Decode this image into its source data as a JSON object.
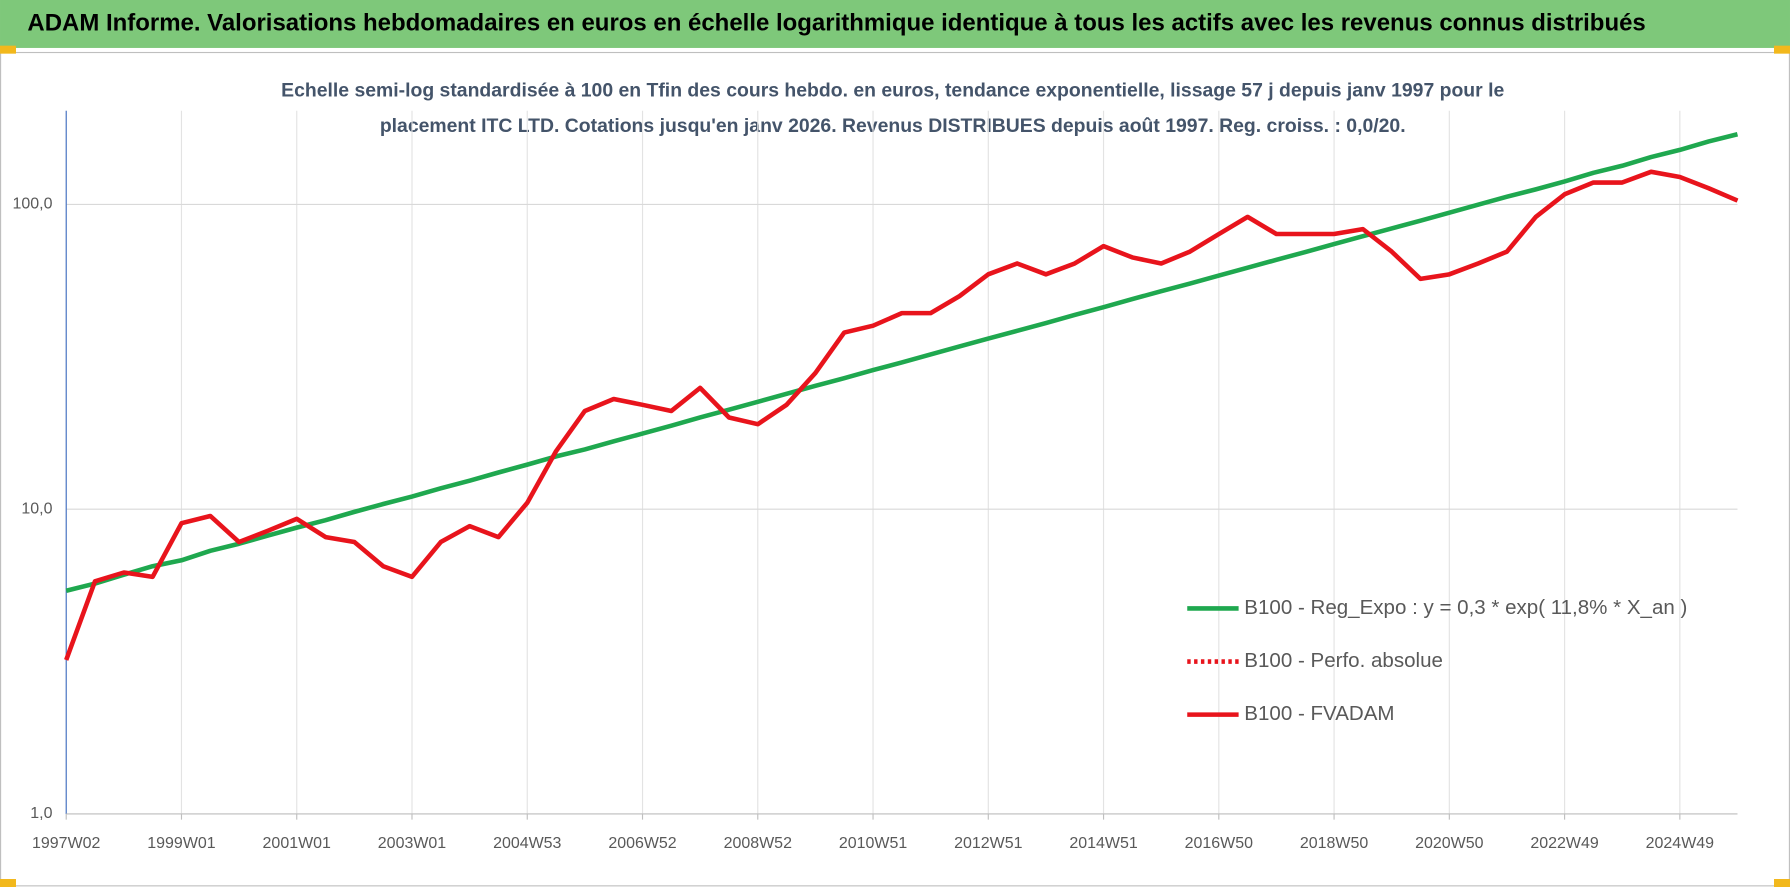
{
  "chart_data": {
    "type": "line",
    "title": "ADAM Informe. Valorisations hebdomadaires en euros en échelle logarithmique identique à tous les actifs avec les revenus connus distribués",
    "subtitle": [
      "Echelle semi-log standardisée à 100 en Tfin des cours hebdo. en euros, tendance exponentielle, lissage 57 j depuis janv 1997 pour le",
      "placement ITC LTD. Cotations jusqu'en janv 2026.  Revenus DISTRIBUES depuis août 1997. Reg.  croiss. : 0,0/20."
    ],
    "categories": [
      "1997W02",
      null,
      null,
      null,
      "1999W01",
      null,
      null,
      null,
      "2001W01",
      null,
      null,
      null,
      "2003W01",
      null,
      null,
      null,
      "2004W53",
      null,
      null,
      null,
      "2006W52",
      null,
      null,
      null,
      "2008W52",
      null,
      null,
      null,
      "2010W51",
      null,
      null,
      null,
      "2012W51",
      null,
      null,
      null,
      "2014W51",
      null,
      null,
      null,
      "2016W50",
      null,
      null,
      null,
      "2018W50",
      null,
      null,
      null,
      "2020W50",
      null,
      null,
      null,
      "2022W49",
      null,
      null,
      null,
      "2024W49",
      null,
      null
    ],
    "log_scale": true,
    "grid": true,
    "legend": "lower right",
    "ylim": [
      1,
      203
    ],
    "yticks": [
      {
        "value": 1,
        "label": "1,0"
      },
      {
        "value": 10,
        "label": "10,0"
      },
      {
        "value": 100,
        "label": "100,0"
      }
    ],
    "series": [
      {
        "name": "B100 - Reg_Expo : y = 0,3 * exp( 11,8% *  X_an )",
        "color": "#1fa84f",
        "style": "solid",
        "values": [
          5.4,
          5.7,
          6.1,
          6.5,
          6.8,
          7.3,
          7.7,
          8.2,
          8.7,
          9.2,
          9.8,
          10.4,
          11.0,
          11.7,
          12.4,
          13.2,
          14.0,
          14.9,
          15.7,
          16.7,
          17.7,
          18.8,
          20.0,
          21.2,
          22.5,
          23.9,
          25.4,
          26.9,
          28.6,
          30.3,
          32.2,
          34.2,
          36.3,
          38.5,
          40.8,
          43.4,
          46.0,
          48.9,
          51.9,
          55.0,
          58.4,
          62.0,
          65.8,
          69.8,
          74.1,
          78.7,
          83.4,
          88.5,
          94.0,
          99.8,
          106,
          112,
          119,
          127,
          134,
          143,
          151,
          161,
          170
        ]
      },
      {
        "name": "B100 - Perfo. absolue",
        "color": "#e8141c",
        "style": "dotted",
        "values": [
          3.2,
          5.8,
          6.2,
          6.0,
          9.0,
          9.5,
          7.8,
          8.5,
          9.3,
          8.1,
          7.8,
          6.5,
          6.0,
          7.8,
          8.8,
          8.1,
          10.5,
          15.5,
          21,
          23,
          22,
          21,
          25,
          20,
          19,
          22,
          28,
          38,
          40,
          44,
          44,
          50,
          59,
          64,
          59,
          64,
          73,
          67,
          64,
          70,
          80,
          91,
          80,
          80,
          80,
          83,
          70,
          57,
          59,
          64,
          70,
          91,
          108,
          118,
          118,
          128,
          123,
          113,
          103
        ]
      },
      {
        "name": "B100 - FVADAM",
        "color": "#e8141c",
        "style": "solid",
        "values": [
          3.2,
          5.8,
          6.2,
          6.0,
          9.0,
          9.5,
          7.8,
          8.5,
          9.3,
          8.1,
          7.8,
          6.5,
          6.0,
          7.8,
          8.8,
          8.1,
          10.5,
          15.5,
          21,
          23,
          22,
          21,
          25,
          20,
          19,
          22,
          28,
          38,
          40,
          44,
          44,
          50,
          59,
          64,
          59,
          64,
          73,
          67,
          64,
          70,
          80,
          91,
          80,
          80,
          80,
          83,
          70,
          57,
          59,
          64,
          70,
          91,
          108,
          118,
          118,
          128,
          123,
          113,
          103
        ]
      }
    ]
  }
}
